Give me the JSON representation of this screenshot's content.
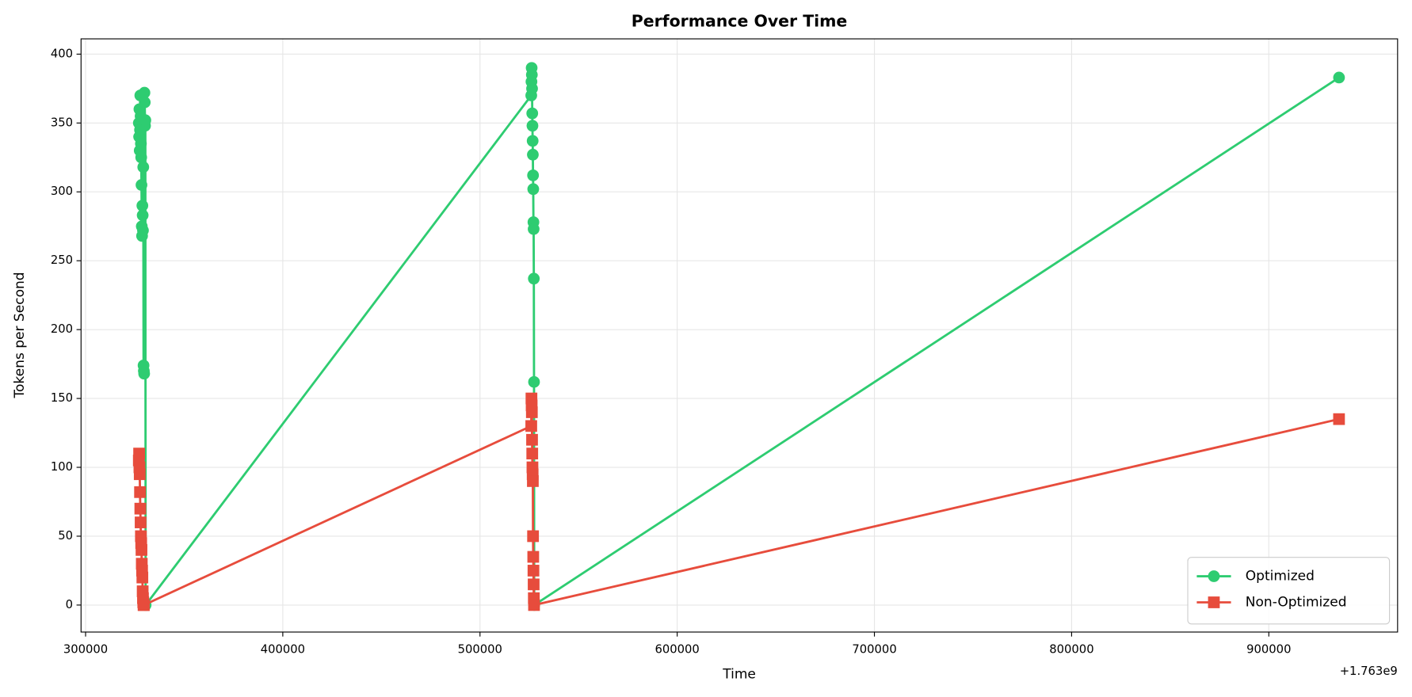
{
  "chart_data": {
    "type": "line",
    "title": "Performance Over Time",
    "x_label": "Time",
    "y_label": "Tokens per Second",
    "x_offset_label": "+1.763e9",
    "series": [
      {
        "name": "Optimized",
        "color": "#2ecc71",
        "marker": "circle",
        "x": [
          327000,
          327150,
          327300,
          327450,
          327600,
          327750,
          327900,
          328050,
          328200,
          328350,
          328500,
          328650,
          328800,
          328950,
          329100,
          329250,
          329400,
          329550,
          329700,
          329850,
          330000,
          330150,
          330300,
          330450,
          526000,
          526100,
          526200,
          526300,
          526400,
          526500,
          526600,
          526700,
          526800,
          526900,
          527000,
          527100,
          527200,
          527300,
          527400,
          527500,
          935600
        ],
        "values": [
          350,
          340,
          360,
          330,
          345,
          370,
          355,
          335,
          325,
          305,
          275,
          268,
          290,
          283,
          272,
          318,
          174,
          170,
          168,
          372,
          365,
          348,
          352,
          0,
          370,
          380,
          390,
          385,
          375,
          357,
          348,
          337,
          327,
          312,
          302,
          278,
          273,
          237,
          162,
          0,
          383
        ]
      },
      {
        "name": "Non-Optimized",
        "color": "#e74c3c",
        "marker": "square",
        "x": [
          327000,
          327150,
          327300,
          327450,
          327600,
          327750,
          327900,
          328050,
          328200,
          328350,
          328500,
          328650,
          328800,
          328950,
          329100,
          329250,
          329400,
          329550,
          526000,
          526100,
          526200,
          526300,
          526400,
          526500,
          526600,
          526700,
          526800,
          526900,
          527000,
          527100,
          527200,
          527300,
          527400,
          935600
        ],
        "values": [
          105,
          110,
          100,
          95,
          82,
          70,
          60,
          50,
          45,
          40,
          30,
          25,
          20,
          10,
          5,
          2,
          0,
          0,
          130,
          150,
          145,
          140,
          120,
          110,
          100,
          95,
          90,
          50,
          35,
          25,
          15,
          5,
          0,
          135
        ]
      }
    ],
    "xlim": [
      297700,
      965300
    ],
    "ylim": [
      -19.6,
      411.1
    ],
    "xticks": [
      300000,
      400000,
      500000,
      600000,
      700000,
      800000,
      900000
    ],
    "yticks": [
      0,
      50,
      100,
      150,
      200,
      250,
      300,
      350,
      400
    ],
    "grid": true,
    "legend": "lower right"
  }
}
